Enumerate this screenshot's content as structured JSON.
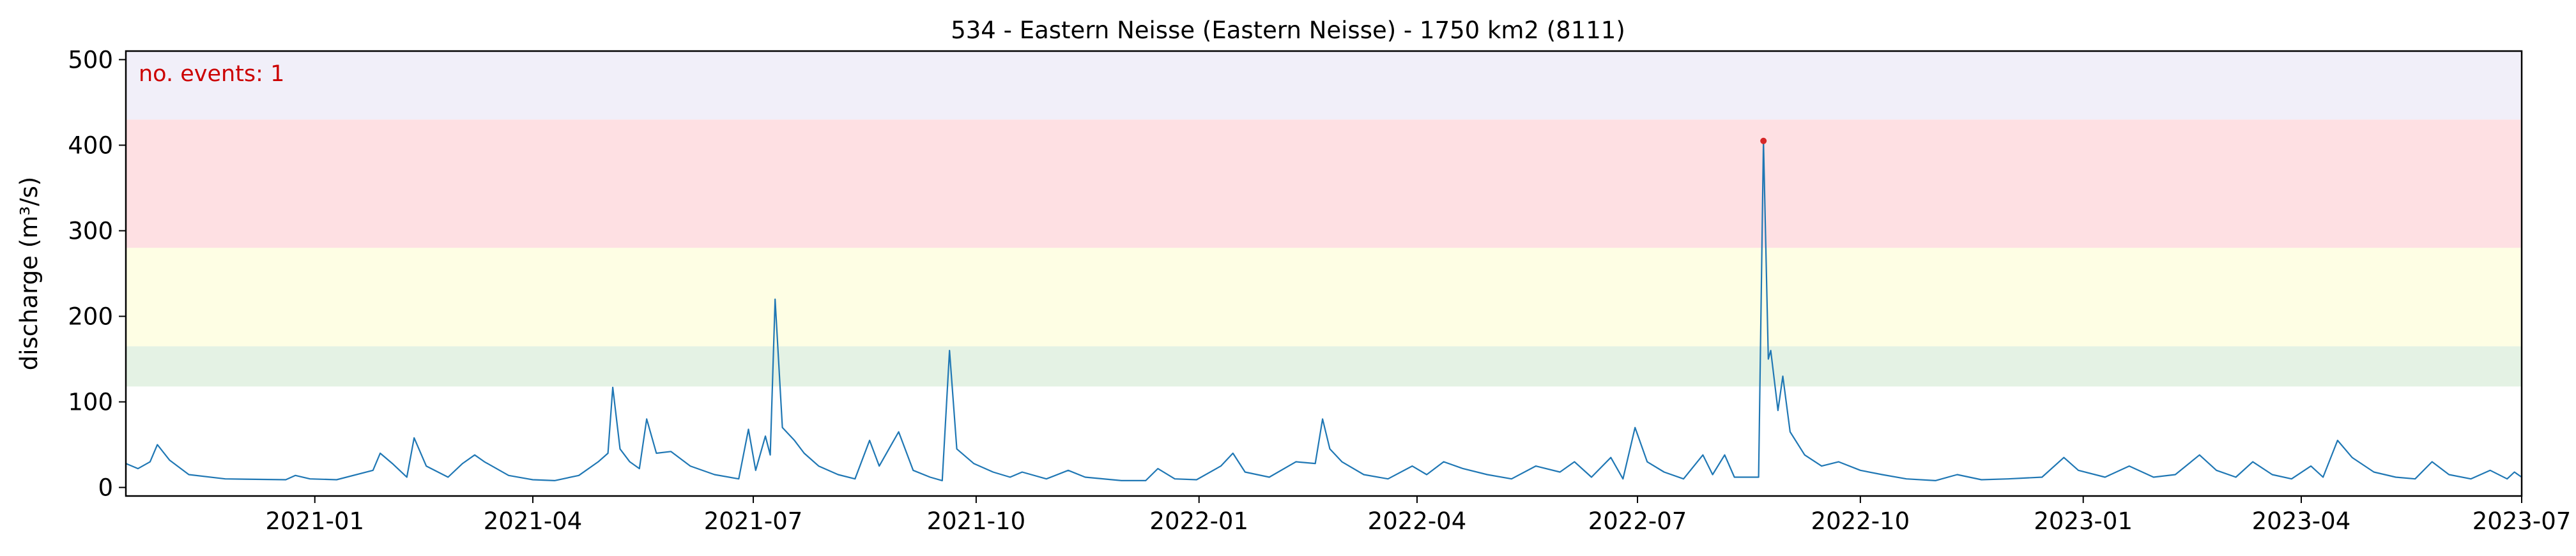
{
  "chart_data": {
    "type": "line",
    "title": "534 - Eastern Neisse (Eastern Neisse) - 1750 km2 (8111)",
    "xlabel": "",
    "ylabel": "discharge (m³/s)",
    "xlim": [
      "2020-10-15",
      "2023-07-01"
    ],
    "ylim": [
      -10,
      510
    ],
    "x_ticks": [
      "2021-01",
      "2021-04",
      "2021-07",
      "2021-10",
      "2022-01",
      "2022-04",
      "2022-07",
      "2022-10",
      "2023-01",
      "2023-04",
      "2023-07"
    ],
    "y_ticks": [
      0,
      100,
      200,
      300,
      400,
      500
    ],
    "grid": false,
    "bands": [
      {
        "y0": 118,
        "y1": 165,
        "color": "#e4f2e4"
      },
      {
        "y0": 165,
        "y1": 280,
        "color": "#fefee4"
      },
      {
        "y0": 280,
        "y1": 430,
        "color": "#fee0e3"
      },
      {
        "y0": 430,
        "y1": 510,
        "color": "#f1eff9"
      }
    ],
    "annotation": {
      "text": "no. events: 1",
      "color": "#cc0000"
    },
    "event_marker": {
      "x": "2022-08-22",
      "y": 405,
      "color": "#d62728"
    },
    "series": [
      {
        "color": "#1f77b4",
        "points": [
          [
            "2020-10-15",
            28
          ],
          [
            "2020-10-20",
            22
          ],
          [
            "2020-10-25",
            30
          ],
          [
            "2020-10-28",
            50
          ],
          [
            "2020-11-02",
            32
          ],
          [
            "2020-11-10",
            15
          ],
          [
            "2020-11-25",
            10
          ],
          [
            "2020-12-20",
            9
          ],
          [
            "2020-12-24",
            14
          ],
          [
            "2020-12-30",
            10
          ],
          [
            "2021-01-10",
            9
          ],
          [
            "2021-01-25",
            20
          ],
          [
            "2021-01-28",
            40
          ],
          [
            "2021-02-02",
            28
          ],
          [
            "2021-02-08",
            12
          ],
          [
            "2021-02-11",
            58
          ],
          [
            "2021-02-16",
            25
          ],
          [
            "2021-02-25",
            12
          ],
          [
            "2021-03-03",
            28
          ],
          [
            "2021-03-08",
            38
          ],
          [
            "2021-03-12",
            30
          ],
          [
            "2021-03-22",
            14
          ],
          [
            "2021-03-30",
            10
          ],
          [
            "2021-04-01",
            9
          ],
          [
            "2021-04-10",
            8
          ],
          [
            "2021-04-20",
            14
          ],
          [
            "2021-04-28",
            30
          ],
          [
            "2021-05-02",
            40
          ],
          [
            "2021-05-04",
            117
          ],
          [
            "2021-05-07",
            45
          ],
          [
            "2021-05-11",
            30
          ],
          [
            "2021-05-15",
            22
          ],
          [
            "2021-05-18",
            80
          ],
          [
            "2021-05-22",
            40
          ],
          [
            "2021-05-28",
            42
          ],
          [
            "2021-06-05",
            25
          ],
          [
            "2021-06-15",
            15
          ],
          [
            "2021-06-25",
            10
          ],
          [
            "2021-06-29",
            68
          ],
          [
            "2021-07-02",
            20
          ],
          [
            "2021-07-06",
            60
          ],
          [
            "2021-07-08",
            38
          ],
          [
            "2021-07-10",
            220
          ],
          [
            "2021-07-13",
            70
          ],
          [
            "2021-07-18",
            55
          ],
          [
            "2021-07-22",
            40
          ],
          [
            "2021-07-28",
            25
          ],
          [
            "2021-08-05",
            15
          ],
          [
            "2021-08-12",
            10
          ],
          [
            "2021-08-18",
            55
          ],
          [
            "2021-08-22",
            25
          ],
          [
            "2021-08-30",
            65
          ],
          [
            "2021-09-05",
            20
          ],
          [
            "2021-09-12",
            12
          ],
          [
            "2021-09-17",
            8
          ],
          [
            "2021-09-20",
            160
          ],
          [
            "2021-09-23",
            45
          ],
          [
            "2021-09-30",
            28
          ],
          [
            "2021-10-08",
            18
          ],
          [
            "2021-10-15",
            12
          ],
          [
            "2021-10-20",
            18
          ],
          [
            "2021-10-30",
            10
          ],
          [
            "2021-11-08",
            20
          ],
          [
            "2021-11-15",
            12
          ],
          [
            "2021-11-30",
            8
          ],
          [
            "2021-12-10",
            8
          ],
          [
            "2021-12-15",
            22
          ],
          [
            "2021-12-22",
            10
          ],
          [
            "2021-12-31",
            9
          ],
          [
            "2022-01-10",
            25
          ],
          [
            "2022-01-15",
            40
          ],
          [
            "2022-01-20",
            18
          ],
          [
            "2022-01-30",
            12
          ],
          [
            "2022-02-10",
            30
          ],
          [
            "2022-02-18",
            28
          ],
          [
            "2022-02-21",
            80
          ],
          [
            "2022-02-24",
            45
          ],
          [
            "2022-03-01",
            30
          ],
          [
            "2022-03-10",
            15
          ],
          [
            "2022-03-20",
            10
          ],
          [
            "2022-03-30",
            25
          ],
          [
            "2022-04-05",
            15
          ],
          [
            "2022-04-12",
            30
          ],
          [
            "2022-04-20",
            22
          ],
          [
            "2022-04-30",
            15
          ],
          [
            "2022-05-10",
            10
          ],
          [
            "2022-05-20",
            25
          ],
          [
            "2022-05-30",
            18
          ],
          [
            "2022-06-05",
            30
          ],
          [
            "2022-06-12",
            12
          ],
          [
            "2022-06-20",
            35
          ],
          [
            "2022-06-25",
            10
          ],
          [
            "2022-06-30",
            70
          ],
          [
            "2022-07-05",
            30
          ],
          [
            "2022-07-12",
            18
          ],
          [
            "2022-07-20",
            10
          ],
          [
            "2022-07-28",
            38
          ],
          [
            "2022-08-01",
            15
          ],
          [
            "2022-08-06",
            38
          ],
          [
            "2022-08-10",
            12
          ],
          [
            "2022-08-20",
            12
          ],
          [
            "2022-08-22",
            405
          ],
          [
            "2022-08-24",
            150
          ],
          [
            "2022-08-25",
            160
          ],
          [
            "2022-08-28",
            90
          ],
          [
            "2022-08-30",
            130
          ],
          [
            "2022-09-02",
            65
          ],
          [
            "2022-09-08",
            38
          ],
          [
            "2022-09-15",
            25
          ],
          [
            "2022-09-22",
            30
          ],
          [
            "2022-10-01",
            20
          ],
          [
            "2022-10-10",
            15
          ],
          [
            "2022-10-20",
            10
          ],
          [
            "2022-11-01",
            8
          ],
          [
            "2022-11-10",
            15
          ],
          [
            "2022-11-20",
            9
          ],
          [
            "2022-12-01",
            10
          ],
          [
            "2022-12-15",
            12
          ],
          [
            "2022-12-24",
            35
          ],
          [
            "2022-12-30",
            20
          ],
          [
            "2023-01-10",
            12
          ],
          [
            "2023-01-20",
            25
          ],
          [
            "2023-01-30",
            12
          ],
          [
            "2023-02-08",
            15
          ],
          [
            "2023-02-18",
            38
          ],
          [
            "2023-02-25",
            20
          ],
          [
            "2023-03-05",
            12
          ],
          [
            "2023-03-12",
            30
          ],
          [
            "2023-03-20",
            15
          ],
          [
            "2023-03-28",
            10
          ],
          [
            "2023-04-05",
            25
          ],
          [
            "2023-04-10",
            12
          ],
          [
            "2023-04-16",
            55
          ],
          [
            "2023-04-22",
            35
          ],
          [
            "2023-05-01",
            18
          ],
          [
            "2023-05-10",
            12
          ],
          [
            "2023-05-18",
            10
          ],
          [
            "2023-05-25",
            30
          ],
          [
            "2023-06-01",
            15
          ],
          [
            "2023-06-10",
            10
          ],
          [
            "2023-06-18",
            20
          ],
          [
            "2023-06-25",
            10
          ],
          [
            "2023-06-28",
            18
          ],
          [
            "2023-07-01",
            12
          ]
        ]
      }
    ]
  }
}
